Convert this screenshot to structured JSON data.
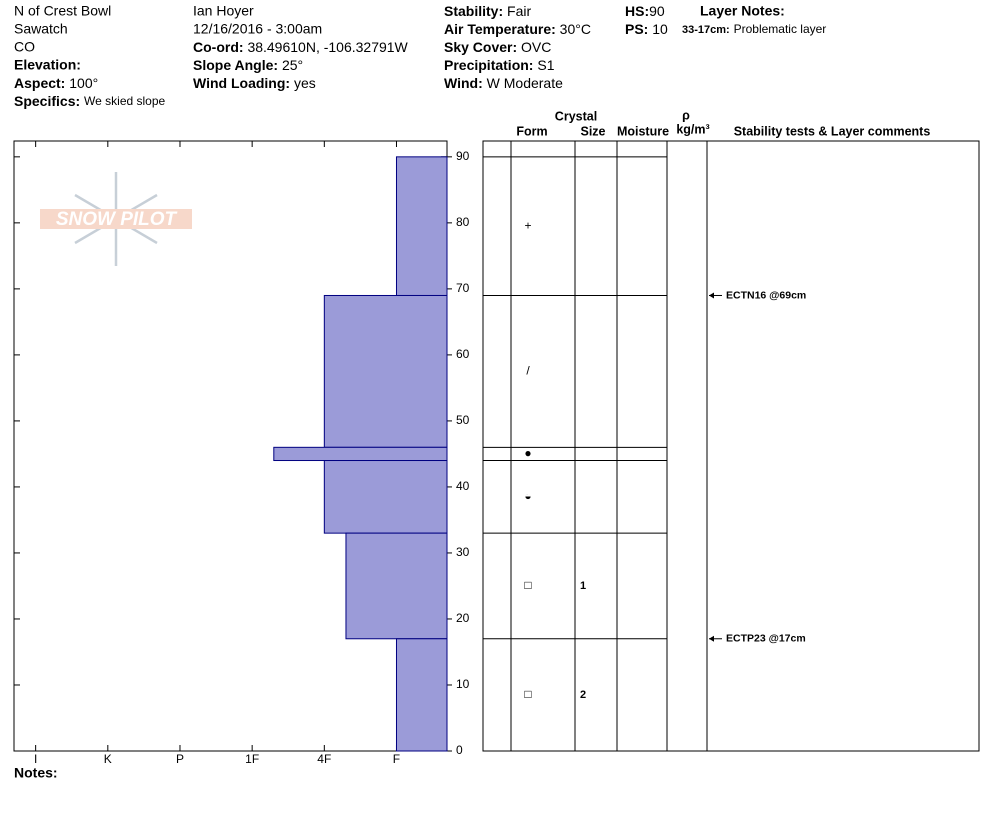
{
  "header": {
    "location": "N of Crest Bowl",
    "range": "Sawatch",
    "state": "CO",
    "elevation_label": "Elevation:",
    "aspect_label": "Aspect:",
    "aspect": "100°",
    "specifics_label": "Specifics:",
    "specifics": "We skied slope",
    "observer": "Ian Hoyer",
    "datetime": "12/16/2016 - 3:00am",
    "coord_label": "Co-ord:",
    "coord": "38.49610N, -106.32791W",
    "slope_label": "Slope Angle:",
    "slope": "25°",
    "wind_loading_label": "Wind Loading:",
    "wind_loading": "yes",
    "stability_label": "Stability:",
    "stability": "Fair",
    "air_temp_label": "Air Temperature:",
    "air_temp": "30°C",
    "sky_label": "Sky Cover:",
    "sky": "OVC",
    "precip_label": "Precipitation:",
    "precip": "S1",
    "wind_label": "Wind:",
    "wind": "W Moderate",
    "hs_label": "HS:",
    "hs": "90",
    "ps_label": "PS:",
    "ps": "10",
    "layer_notes_label": "Layer Notes:",
    "layer_note_range": "33-17cm:",
    "layer_note": "Problematic layer"
  },
  "notes_label": "Notes:",
  "chart_data": {
    "type": "snow-profile",
    "logo": "SNOW PILOT",
    "color": "#9b9bd8",
    "edge_color": "#000080",
    "ylim": [
      0,
      92.4
    ],
    "yticks": [
      0,
      10,
      20,
      30,
      40,
      50,
      60,
      70,
      80,
      90
    ],
    "xlim": [
      6.3,
      0.3
    ],
    "xticks": [
      {
        "value": 6,
        "label": "I"
      },
      {
        "value": 5,
        "label": "K"
      },
      {
        "value": 4,
        "label": "P"
      },
      {
        "value": 3,
        "label": "1F"
      },
      {
        "value": 2,
        "label": "4F"
      },
      {
        "value": 1,
        "label": "F"
      }
    ],
    "columns": {
      "crystal": "Crystal",
      "form": "Form",
      "size": "Size",
      "moisture": "Moisture",
      "density_symbol": "ρ",
      "density_unit": "kg/m³",
      "comments": "Stability tests & Layer comments"
    },
    "layers": [
      {
        "top": 90,
        "bottom": 69,
        "hardness": 1,
        "form": "+"
      },
      {
        "top": 69,
        "bottom": 46,
        "hardness": 2,
        "form": "/"
      },
      {
        "top": 46,
        "bottom": 44,
        "hardness": 2.7,
        "form": "●"
      },
      {
        "top": 44,
        "bottom": 33,
        "hardness": 2,
        "form": "◒"
      },
      {
        "top": 33,
        "bottom": 17,
        "hardness": 1.7,
        "form": "□",
        "size": "1"
      },
      {
        "top": 17,
        "bottom": 0,
        "hardness": 1,
        "form": "□",
        "size": "2"
      }
    ],
    "stability_tests": [
      {
        "label": "ECTN16 @69cm",
        "height": 69
      },
      {
        "label": "ECTP23 @17cm",
        "height": 17
      }
    ]
  }
}
